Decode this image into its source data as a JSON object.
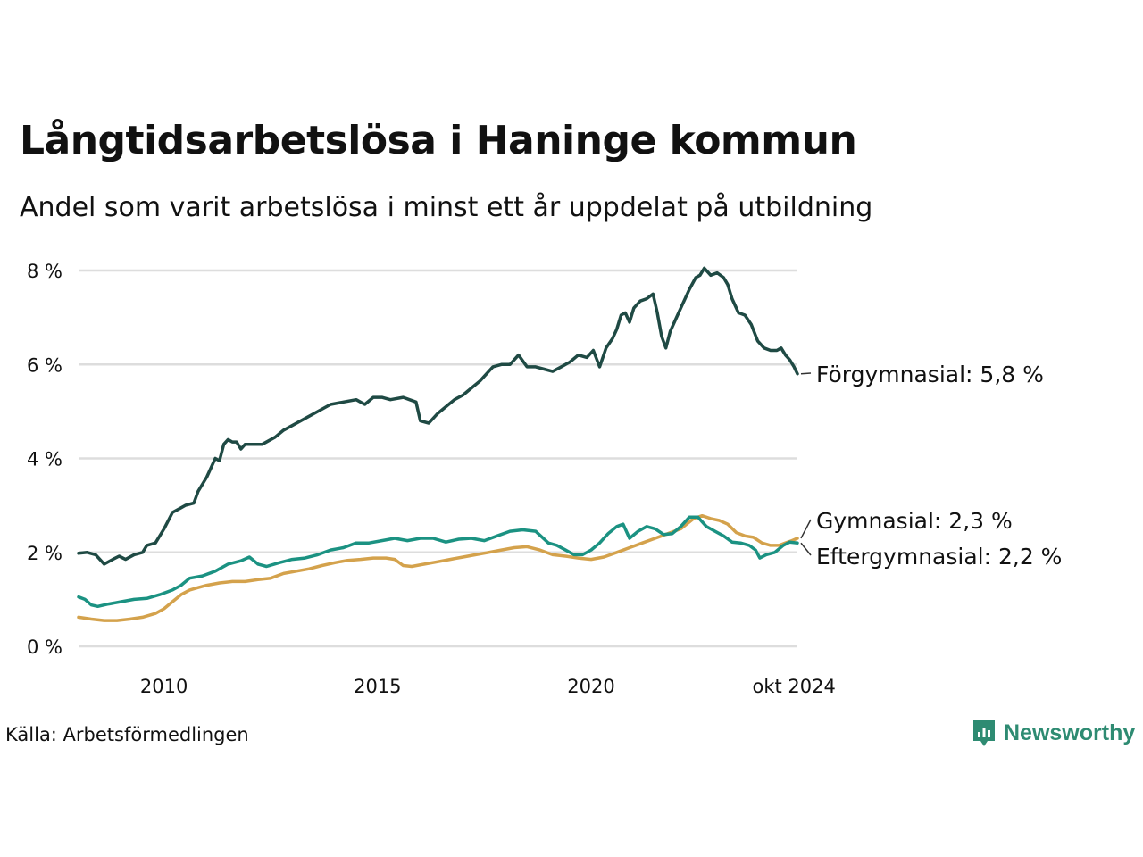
{
  "header": {
    "title": "Långtidsarbetslösa i Haninge kommun",
    "subtitle": "Andel som varit arbetslösa i minst ett år uppdelat på utbildning"
  },
  "footer": {
    "source": "Källa: Arbetsförmedlingen",
    "brand": "Newsworthy"
  },
  "colors": {
    "forgymnasial": "#1f4a44",
    "gymnasial": "#d4a24c",
    "eftergymnasial": "#1b9282",
    "grid": "#dddddd",
    "brand": "#2e8b72"
  },
  "chart_data": {
    "type": "line",
    "title": "Långtidsarbetslösa i Haninge kommun",
    "subtitle": "Andel som varit arbetslösa i minst ett år uppdelat på utbildning",
    "xlabel": "",
    "ylabel": "",
    "xlim": [
      2008.0,
      2024.83
    ],
    "ylim": [
      0,
      8
    ],
    "y_ticks": [
      0,
      2,
      4,
      6,
      8
    ],
    "y_tick_labels": [
      "0 %",
      "2 %",
      "4 %",
      "6 %",
      "8 %"
    ],
    "x_ticks": [
      2010,
      2015,
      2020,
      2024.75
    ],
    "x_tick_labels": [
      "2010",
      "2015",
      "2020",
      "okt 2024"
    ],
    "grid": true,
    "legend": "end-labels",
    "series": [
      {
        "name": "Förgymnasial",
        "label": "Förgymnasial: 5,8 %",
        "color_key": "forgymnasial",
        "points": [
          [
            2008.0,
            1.98
          ],
          [
            2008.2,
            2.0
          ],
          [
            2008.4,
            1.95
          ],
          [
            2008.6,
            1.75
          ],
          [
            2008.8,
            1.85
          ],
          [
            2008.95,
            1.92
          ],
          [
            2009.1,
            1.85
          ],
          [
            2009.3,
            1.95
          ],
          [
            2009.5,
            2.0
          ],
          [
            2009.6,
            2.15
          ],
          [
            2009.8,
            2.2
          ],
          [
            2010.0,
            2.5
          ],
          [
            2010.2,
            2.85
          ],
          [
            2010.4,
            2.95
          ],
          [
            2010.5,
            3.0
          ],
          [
            2010.7,
            3.05
          ],
          [
            2010.8,
            3.3
          ],
          [
            2011.0,
            3.6
          ],
          [
            2011.2,
            4.0
          ],
          [
            2011.3,
            3.95
          ],
          [
            2011.4,
            4.3
          ],
          [
            2011.5,
            4.4
          ],
          [
            2011.6,
            4.35
          ],
          [
            2011.7,
            4.35
          ],
          [
            2011.8,
            4.2
          ],
          [
            2011.9,
            4.3
          ],
          [
            2012.1,
            4.3
          ],
          [
            2012.3,
            4.3
          ],
          [
            2012.6,
            4.45
          ],
          [
            2012.8,
            4.6
          ],
          [
            2013.0,
            4.7
          ],
          [
            2013.3,
            4.85
          ],
          [
            2013.6,
            5.0
          ],
          [
            2013.9,
            5.15
          ],
          [
            2014.2,
            5.2
          ],
          [
            2014.5,
            5.25
          ],
          [
            2014.7,
            5.15
          ],
          [
            2014.9,
            5.3
          ],
          [
            2015.1,
            5.3
          ],
          [
            2015.3,
            5.25
          ],
          [
            2015.6,
            5.3
          ],
          [
            2015.9,
            5.2
          ],
          [
            2016.0,
            4.8
          ],
          [
            2016.2,
            4.75
          ],
          [
            2016.4,
            4.95
          ],
          [
            2016.6,
            5.1
          ],
          [
            2016.8,
            5.25
          ],
          [
            2017.0,
            5.35
          ],
          [
            2017.2,
            5.5
          ],
          [
            2017.4,
            5.65
          ],
          [
            2017.5,
            5.75
          ],
          [
            2017.7,
            5.95
          ],
          [
            2017.9,
            6.0
          ],
          [
            2018.1,
            6.0
          ],
          [
            2018.3,
            6.2
          ],
          [
            2018.5,
            5.95
          ],
          [
            2018.7,
            5.95
          ],
          [
            2018.9,
            5.9
          ],
          [
            2019.1,
            5.85
          ],
          [
            2019.3,
            5.95
          ],
          [
            2019.5,
            6.05
          ],
          [
            2019.7,
            6.2
          ],
          [
            2019.9,
            6.15
          ],
          [
            2020.05,
            6.3
          ],
          [
            2020.2,
            5.95
          ],
          [
            2020.35,
            6.35
          ],
          [
            2020.5,
            6.55
          ],
          [
            2020.6,
            6.75
          ],
          [
            2020.7,
            7.05
          ],
          [
            2020.8,
            7.1
          ],
          [
            2020.9,
            6.9
          ],
          [
            2021.0,
            7.2
          ],
          [
            2021.15,
            7.35
          ],
          [
            2021.3,
            7.4
          ],
          [
            2021.45,
            7.5
          ],
          [
            2021.55,
            7.1
          ],
          [
            2021.65,
            6.6
          ],
          [
            2021.75,
            6.35
          ],
          [
            2021.85,
            6.7
          ],
          [
            2022.0,
            7.0
          ],
          [
            2022.15,
            7.3
          ],
          [
            2022.3,
            7.6
          ],
          [
            2022.45,
            7.85
          ],
          [
            2022.55,
            7.9
          ],
          [
            2022.65,
            8.05
          ],
          [
            2022.8,
            7.9
          ],
          [
            2022.95,
            7.95
          ],
          [
            2023.1,
            7.85
          ],
          [
            2023.2,
            7.7
          ],
          [
            2023.3,
            7.4
          ],
          [
            2023.45,
            7.1
          ],
          [
            2023.6,
            7.05
          ],
          [
            2023.75,
            6.85
          ],
          [
            2023.9,
            6.5
          ],
          [
            2024.05,
            6.35
          ],
          [
            2024.2,
            6.3
          ],
          [
            2024.35,
            6.3
          ],
          [
            2024.45,
            6.35
          ],
          [
            2024.55,
            6.2
          ],
          [
            2024.65,
            6.1
          ],
          [
            2024.75,
            5.95
          ],
          [
            2024.83,
            5.8
          ]
        ]
      },
      {
        "name": "Gymnasial",
        "label": "Gymnasial: 2,3 %",
        "color_key": "gymnasial",
        "points": [
          [
            2008.0,
            0.62
          ],
          [
            2008.3,
            0.58
          ],
          [
            2008.6,
            0.55
          ],
          [
            2008.9,
            0.55
          ],
          [
            2009.2,
            0.58
          ],
          [
            2009.5,
            0.62
          ],
          [
            2009.8,
            0.7
          ],
          [
            2010.0,
            0.8
          ],
          [
            2010.2,
            0.95
          ],
          [
            2010.4,
            1.1
          ],
          [
            2010.6,
            1.2
          ],
          [
            2010.8,
            1.25
          ],
          [
            2011.0,
            1.3
          ],
          [
            2011.3,
            1.35
          ],
          [
            2011.6,
            1.38
          ],
          [
            2011.9,
            1.38
          ],
          [
            2012.2,
            1.42
          ],
          [
            2012.5,
            1.45
          ],
          [
            2012.8,
            1.55
          ],
          [
            2013.1,
            1.6
          ],
          [
            2013.4,
            1.65
          ],
          [
            2013.7,
            1.72
          ],
          [
            2014.0,
            1.78
          ],
          [
            2014.3,
            1.83
          ],
          [
            2014.6,
            1.85
          ],
          [
            2014.9,
            1.88
          ],
          [
            2015.2,
            1.88
          ],
          [
            2015.4,
            1.85
          ],
          [
            2015.6,
            1.72
          ],
          [
            2015.8,
            1.7
          ],
          [
            2016.1,
            1.75
          ],
          [
            2016.4,
            1.8
          ],
          [
            2016.7,
            1.85
          ],
          [
            2017.0,
            1.9
          ],
          [
            2017.3,
            1.95
          ],
          [
            2017.6,
            2.0
          ],
          [
            2017.9,
            2.05
          ],
          [
            2018.2,
            2.1
          ],
          [
            2018.5,
            2.12
          ],
          [
            2018.8,
            2.05
          ],
          [
            2019.1,
            1.95
          ],
          [
            2019.4,
            1.92
          ],
          [
            2019.7,
            1.88
          ],
          [
            2020.0,
            1.85
          ],
          [
            2020.3,
            1.9
          ],
          [
            2020.6,
            2.0
          ],
          [
            2020.9,
            2.1
          ],
          [
            2021.2,
            2.2
          ],
          [
            2021.5,
            2.3
          ],
          [
            2021.8,
            2.4
          ],
          [
            2022.1,
            2.5
          ],
          [
            2022.4,
            2.72
          ],
          [
            2022.6,
            2.78
          ],
          [
            2022.8,
            2.72
          ],
          [
            2023.0,
            2.68
          ],
          [
            2023.2,
            2.6
          ],
          [
            2023.4,
            2.42
          ],
          [
            2023.6,
            2.35
          ],
          [
            2023.8,
            2.32
          ],
          [
            2024.0,
            2.2
          ],
          [
            2024.2,
            2.15
          ],
          [
            2024.4,
            2.15
          ],
          [
            2024.55,
            2.2
          ],
          [
            2024.7,
            2.25
          ],
          [
            2024.83,
            2.3
          ]
        ]
      },
      {
        "name": "Eftergymnasial",
        "label": "Eftergymnasial: 2,2 %",
        "color_key": "eftergymnasial",
        "points": [
          [
            2008.0,
            1.05
          ],
          [
            2008.15,
            1.0
          ],
          [
            2008.3,
            0.88
          ],
          [
            2008.45,
            0.85
          ],
          [
            2008.7,
            0.9
          ],
          [
            2009.0,
            0.95
          ],
          [
            2009.3,
            1.0
          ],
          [
            2009.6,
            1.02
          ],
          [
            2009.9,
            1.1
          ],
          [
            2010.2,
            1.2
          ],
          [
            2010.4,
            1.3
          ],
          [
            2010.6,
            1.45
          ],
          [
            2010.9,
            1.5
          ],
          [
            2011.2,
            1.6
          ],
          [
            2011.5,
            1.75
          ],
          [
            2011.8,
            1.82
          ],
          [
            2012.0,
            1.9
          ],
          [
            2012.2,
            1.75
          ],
          [
            2012.4,
            1.7
          ],
          [
            2012.7,
            1.78
          ],
          [
            2013.0,
            1.85
          ],
          [
            2013.3,
            1.88
          ],
          [
            2013.6,
            1.95
          ],
          [
            2013.9,
            2.05
          ],
          [
            2014.2,
            2.1
          ],
          [
            2014.5,
            2.2
          ],
          [
            2014.8,
            2.2
          ],
          [
            2015.1,
            2.25
          ],
          [
            2015.4,
            2.3
          ],
          [
            2015.7,
            2.25
          ],
          [
            2016.0,
            2.3
          ],
          [
            2016.3,
            2.3
          ],
          [
            2016.6,
            2.22
          ],
          [
            2016.9,
            2.28
          ],
          [
            2017.2,
            2.3
          ],
          [
            2017.5,
            2.25
          ],
          [
            2017.8,
            2.35
          ],
          [
            2018.1,
            2.45
          ],
          [
            2018.4,
            2.48
          ],
          [
            2018.7,
            2.45
          ],
          [
            2019.0,
            2.2
          ],
          [
            2019.2,
            2.15
          ],
          [
            2019.4,
            2.05
          ],
          [
            2019.6,
            1.95
          ],
          [
            2019.8,
            1.95
          ],
          [
            2020.0,
            2.05
          ],
          [
            2020.2,
            2.2
          ],
          [
            2020.4,
            2.4
          ],
          [
            2020.6,
            2.55
          ],
          [
            2020.75,
            2.6
          ],
          [
            2020.9,
            2.3
          ],
          [
            2021.1,
            2.45
          ],
          [
            2021.3,
            2.55
          ],
          [
            2021.5,
            2.5
          ],
          [
            2021.7,
            2.38
          ],
          [
            2021.9,
            2.4
          ],
          [
            2022.1,
            2.55
          ],
          [
            2022.3,
            2.75
          ],
          [
            2022.5,
            2.75
          ],
          [
            2022.7,
            2.55
          ],
          [
            2022.9,
            2.45
          ],
          [
            2023.1,
            2.35
          ],
          [
            2023.3,
            2.22
          ],
          [
            2023.5,
            2.2
          ],
          [
            2023.7,
            2.15
          ],
          [
            2023.85,
            2.05
          ],
          [
            2023.95,
            1.88
          ],
          [
            2024.1,
            1.95
          ],
          [
            2024.3,
            2.0
          ],
          [
            2024.5,
            2.15
          ],
          [
            2024.65,
            2.22
          ],
          [
            2024.83,
            2.2
          ]
        ]
      }
    ]
  }
}
